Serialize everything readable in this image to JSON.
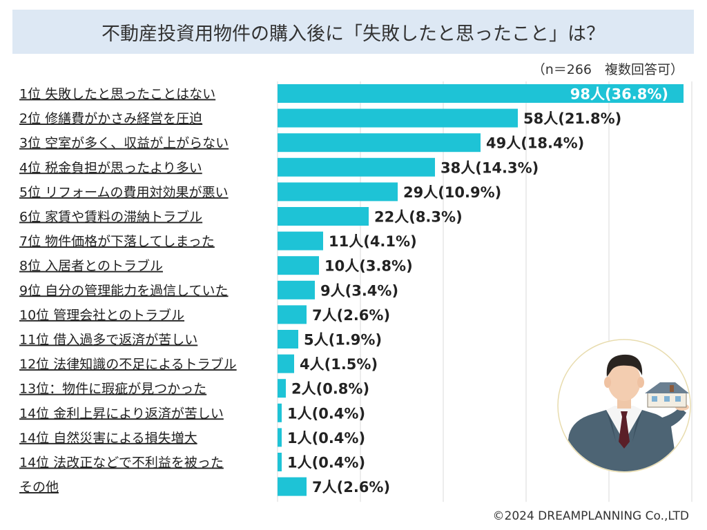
{
  "header": {
    "title": "不動産投資用物件の購入後に「失敗したと思ったこと」は？",
    "note": "（n＝266　複数回答可）"
  },
  "footer": {
    "copyright": "©2024 DREAMPLANNING Co.,LTD"
  },
  "colors": {
    "bar": "#1ec3d6",
    "title_bg": "#dde8f4",
    "grid": "#d9d9d9"
  },
  "chart_data": {
    "type": "bar",
    "orientation": "horizontal",
    "title": "不動産投資用物件の購入後に「失敗したと思ったこと」は？",
    "subtitle": "（n＝266　複数回答可）",
    "categories": [
      "1位 失敗したと思ったことはない",
      "2位 修繕費がかさみ経営を圧迫",
      "3位 空室が多く、収益が上がらない",
      "4位 税金負担が思ったより多い",
      "5位 リフォームの費用対効果が悪い",
      "6位 家賃や賃料の滞納トラブル",
      "7位 物件価格が下落してしまった",
      "8位 入居者とのトラブル",
      "9位 自分の管理能力を過信していた",
      "10位 管理会社とのトラブル",
      "11位 借入過多で返済が苦しい",
      "12位 法律知識の不足によるトラブル",
      "13位：物件に瑕疵が見つかった",
      "14位 金利上昇により返済が苦しい",
      "14位 自然災害による損失増大",
      "14位 法改正などで不利益を被った",
      "その他"
    ],
    "values": [
      98,
      58,
      49,
      38,
      29,
      22,
      11,
      10,
      9,
      7,
      5,
      4,
      2,
      1,
      1,
      1,
      7
    ],
    "data_labels": [
      "98人(36.8%)",
      "58人(21.8%)",
      "49人(18.4%)",
      "38人(14.3%)",
      "29人(10.9%)",
      "22人(8.3%)",
      "11人(4.1%)",
      "10人(3.8%)",
      "9人(3.4%)",
      "7人(2.6%)",
      "5人(1.9%)",
      "4人(1.5%)",
      "2人(0.8%)",
      "1人(0.4%)",
      "1人(0.4%)",
      "1人(0.4%)",
      "7人(2.6%)"
    ],
    "xlim": [
      0,
      100
    ],
    "grid": true,
    "xlabel": "",
    "ylabel": ""
  }
}
